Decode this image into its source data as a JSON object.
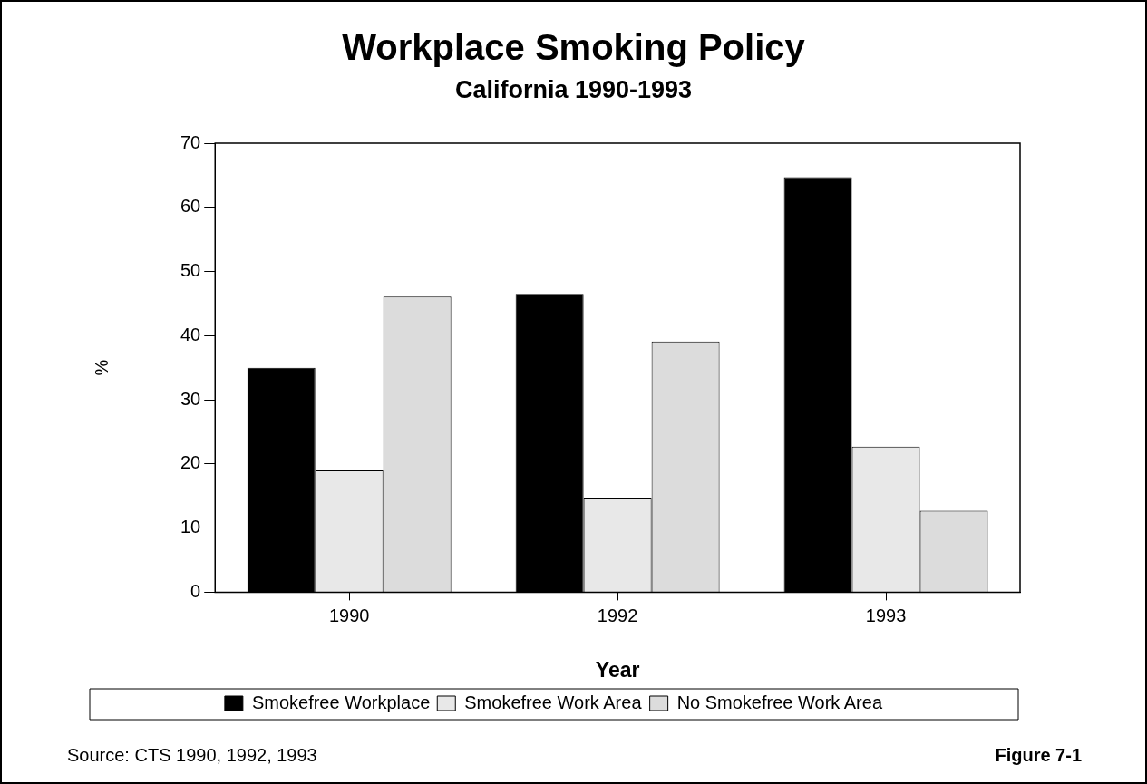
{
  "chart_data": {
    "type": "bar",
    "title": "Workplace Smoking Policy",
    "subtitle": "California 1990-1993",
    "xlabel": "Year",
    "ylabel": "%",
    "categories": [
      "1990",
      "1992",
      "1993"
    ],
    "series": [
      {
        "name": "Smokefree Workplace",
        "color": "#000000",
        "values": [
          35,
          46.5,
          64.7
        ]
      },
      {
        "name": "Smokefree Work Area",
        "color": "#e8e8e8",
        "values": [
          19,
          14.6,
          22.7
        ]
      },
      {
        "name": "No Smokefree Work Area",
        "color": "#dcdcdc",
        "values": [
          46.1,
          39.1,
          12.7
        ]
      }
    ],
    "ylim": [
      0,
      70
    ],
    "yticks": [
      0,
      10,
      20,
      30,
      40,
      50,
      60,
      70
    ],
    "legend": "bottom",
    "annotations": [
      "Source: CTS 1990, 1992, 1993",
      "Figure 7-1"
    ]
  }
}
